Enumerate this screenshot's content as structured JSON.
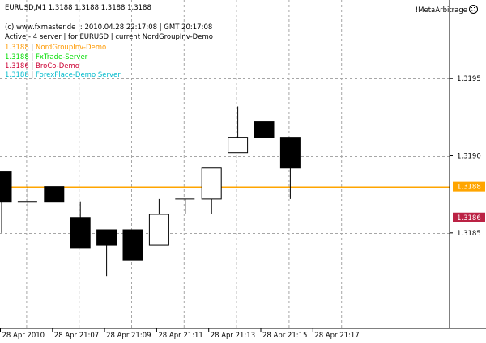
{
  "window": {
    "title": "EURUSD,M1  1.3188 1.3188 1.3188 1.3188",
    "symbol": "EURUSD",
    "timeframe": "M1",
    "ohlc": [
      "1.3188",
      "1.3188",
      "1.3188",
      "1.3188"
    ]
  },
  "info": {
    "line1": "(c) www.fxmaster.de :: 2010.04.28 22:17:08 | GMT 20:17:08",
    "line2": "Active - 4 server | for EURUSD | current NordGroupInv-Demo"
  },
  "indicators": [
    {
      "price": "1.3188",
      "sep": "|",
      "server": "NordGroupInv-Demo",
      "color": "#ff9900"
    },
    {
      "price": "1.3188",
      "sep": "|",
      "server": "FxTrade-Server",
      "color": "#00dd00"
    },
    {
      "price": "1.3186",
      "sep": "|",
      "server": "BroCo-Demo",
      "color": "#cc0033"
    },
    {
      "price": "1.3188",
      "sep": "|",
      "server": "ForexPlace-Demo Server",
      "color": "#00bbcc"
    }
  ],
  "expert": {
    "label": "!MetaArbitrage",
    "icon": "smiley-face-icon"
  },
  "colors": {
    "grid": "#a6a6a6",
    "bull_fill": "#ffffff",
    "bear_fill": "#000000",
    "candle_outline": "#000000",
    "orange_line": "#ffa500",
    "red_line": "#cc3355",
    "orange_tag_bg": "#ffa500",
    "red_tag_bg": "#bb2244"
  },
  "chart_data": {
    "type": "candlestick",
    "symbol": "EURUSD",
    "timeframe": "M1",
    "y_axis_ticks": [
      "1.3195",
      "1.3190",
      "1.3185"
    ],
    "x_axis_ticks": [
      "28 Apr 2010",
      "28 Apr 21:07",
      "28 Apr 21:09",
      "28 Apr 21:11",
      "28 Apr 21:13",
      "28 Apr 21:15",
      "28 Apr 21:17"
    ],
    "ylim": [
      1.31788,
      1.32001
    ],
    "grid": true,
    "candles": [
      {
        "open": 1.3189,
        "high": 1.3189,
        "low": 1.3185,
        "close": 1.3187
      },
      {
        "open": 1.3187,
        "high": 1.3188,
        "low": 1.3186,
        "close": 1.3187
      },
      {
        "open": 1.3188,
        "high": 1.3188,
        "low": 1.3187,
        "close": 1.3187
      },
      {
        "open": 1.3186,
        "high": 1.3187,
        "low": 1.3184,
        "close": 1.3184
      },
      {
        "open": 1.31852,
        "high": 1.31852,
        "low": 1.31822,
        "close": 1.31842
      },
      {
        "open": 1.31852,
        "high": 1.31852,
        "low": 1.31832,
        "close": 1.31832
      },
      {
        "open": 1.31842,
        "high": 1.31872,
        "low": 1.31842,
        "close": 1.31862
      },
      {
        "open": 1.31872,
        "high": 1.31872,
        "low": 1.31862,
        "close": 1.31872
      },
      {
        "open": 1.31872,
        "high": 1.31892,
        "low": 1.31862,
        "close": 1.31892
      },
      {
        "open": 1.31902,
        "high": 1.31932,
        "low": 1.31902,
        "close": 1.31912
      },
      {
        "open": 1.31922,
        "high": 1.31922,
        "low": 1.31912,
        "close": 1.31912
      },
      {
        "open": 1.31912,
        "high": 1.31912,
        "low": 1.31872,
        "close": 1.31892
      }
    ],
    "lines": [
      {
        "price": 1.3188,
        "label": "1.3188",
        "color": "#ffa500"
      },
      {
        "price": 1.3186,
        "label": "1.3186",
        "color": "#cc3355"
      }
    ]
  }
}
